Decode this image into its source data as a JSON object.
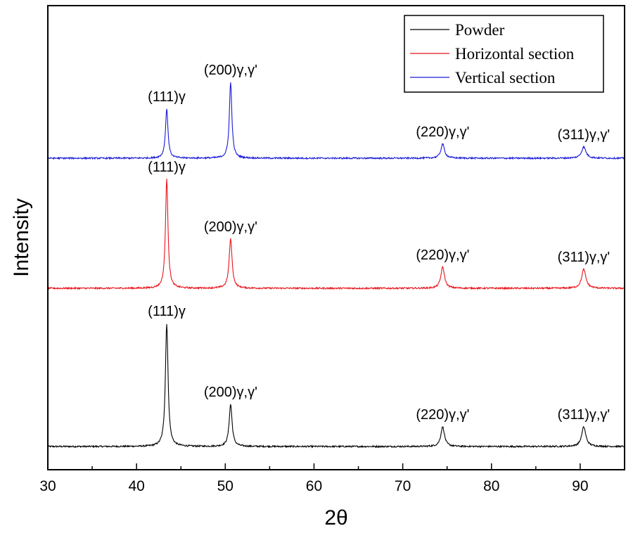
{
  "chart_data": {
    "type": "line",
    "xlabel": "2θ",
    "ylabel": "Intensity",
    "xlim": [
      30,
      95
    ],
    "xticks": [
      30,
      40,
      50,
      60,
      70,
      80,
      90
    ],
    "xtick_labels": [
      "30",
      "40",
      "50",
      "60",
      "70",
      "80",
      "90"
    ],
    "y_ticks_shown": false,
    "grid": false,
    "legend_position": "top-right",
    "series": [
      {
        "name": "Powder",
        "color": "#000000",
        "baseline": 0,
        "peaks": [
          {
            "x": 43.4,
            "height": 175,
            "width": 0.18,
            "label": "(111)γ"
          },
          {
            "x": 50.6,
            "height": 60,
            "width": 0.2,
            "label": "(200)γ,γ'"
          },
          {
            "x": 74.5,
            "height": 28,
            "width": 0.25,
            "label": "(220)γ,γ'"
          },
          {
            "x": 90.4,
            "height": 28,
            "width": 0.28,
            "label": "(311)γ,γ'"
          }
        ]
      },
      {
        "name": "Horizontal section",
        "color": "#e8141c",
        "baseline": 225,
        "peaks": [
          {
            "x": 43.4,
            "height": 155,
            "width": 0.17,
            "label": "(111)γ"
          },
          {
            "x": 50.6,
            "height": 70,
            "width": 0.2,
            "label": "(200)γ,γ'"
          },
          {
            "x": 74.5,
            "height": 30,
            "width": 0.25,
            "label": "(220)γ,γ'"
          },
          {
            "x": 90.4,
            "height": 27,
            "width": 0.28,
            "label": "(311)γ,γ'"
          }
        ]
      },
      {
        "name": "Vertical section",
        "color": "#1a1ad8",
        "baseline": 410,
        "peaks": [
          {
            "x": 43.4,
            "height": 70,
            "width": 0.17,
            "label": "(111)γ"
          },
          {
            "x": 50.6,
            "height": 108,
            "width": 0.17,
            "label": "(200)γ,γ'"
          },
          {
            "x": 74.5,
            "height": 20,
            "width": 0.25,
            "label": "(220)γ,γ'"
          },
          {
            "x": 90.4,
            "height": 16,
            "width": 0.3,
            "label": "(311)γ,γ'"
          }
        ]
      }
    ]
  }
}
